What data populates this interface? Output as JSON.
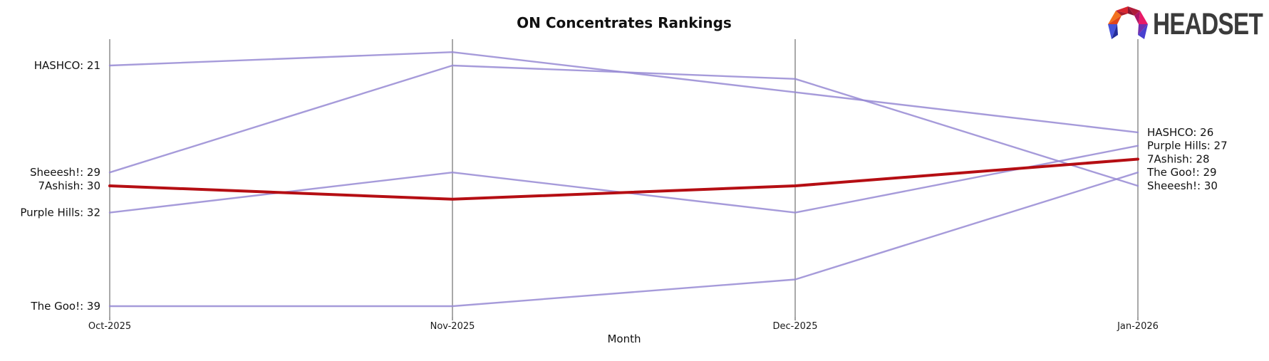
{
  "title": "ON Concentrates Rankings",
  "logo": {
    "text": "HEADSET"
  },
  "colors": {
    "line_default": "#9689d3",
    "line_highlight": "#b50e13",
    "label_default": "#111111",
    "label_highlight": "#c40a0a",
    "axis_line": "#a9a9a9",
    "tick": "#444444"
  },
  "chart_data": {
    "type": "line",
    "subtype": "bump-ranking",
    "title": "ON Concentrates Rankings",
    "xlabel": "Month",
    "x": [
      "Oct-2025",
      "Nov-2025",
      "Dec-2025",
      "Jan-2026"
    ],
    "y_inverted": true,
    "ylim": [
      19,
      40
    ],
    "grid": "vertical-month-axes",
    "legend_position": "edge-labels",
    "series": [
      {
        "name": "HASHCO",
        "values": [
          21,
          20,
          23,
          26
        ],
        "highlight": false
      },
      {
        "name": "Sheeesh!",
        "values": [
          29,
          21,
          22,
          30
        ],
        "highlight": false
      },
      {
        "name": "7Ashish",
        "values": [
          30,
          31,
          30,
          28
        ],
        "highlight": true
      },
      {
        "name": "Purple Hills",
        "values": [
          32,
          29,
          32,
          27
        ],
        "highlight": false
      },
      {
        "name": "The Goo!",
        "values": [
          39,
          39,
          37,
          29
        ],
        "highlight": false
      }
    ],
    "left_labels": [
      {
        "text": "HASHCO: 21",
        "rank": 21,
        "highlight": false
      },
      {
        "text": "Sheeesh!: 29",
        "rank": 29,
        "highlight": false
      },
      {
        "text": "7Ashish: 30",
        "rank": 30,
        "highlight": true
      },
      {
        "text": "Purple Hills: 32",
        "rank": 32,
        "highlight": false
      },
      {
        "text": "The Goo!: 39",
        "rank": 39,
        "highlight": false
      }
    ],
    "right_labels": [
      {
        "text": "HASHCO: 26",
        "rank": 26,
        "highlight": false
      },
      {
        "text": "Purple Hills: 27",
        "rank": 27,
        "highlight": false
      },
      {
        "text": "7Ashish: 28",
        "rank": 28,
        "highlight": true
      },
      {
        "text": "The Goo!: 29",
        "rank": 29,
        "highlight": false
      },
      {
        "text": "Sheeesh!: 30",
        "rank": 30,
        "highlight": false
      }
    ]
  }
}
